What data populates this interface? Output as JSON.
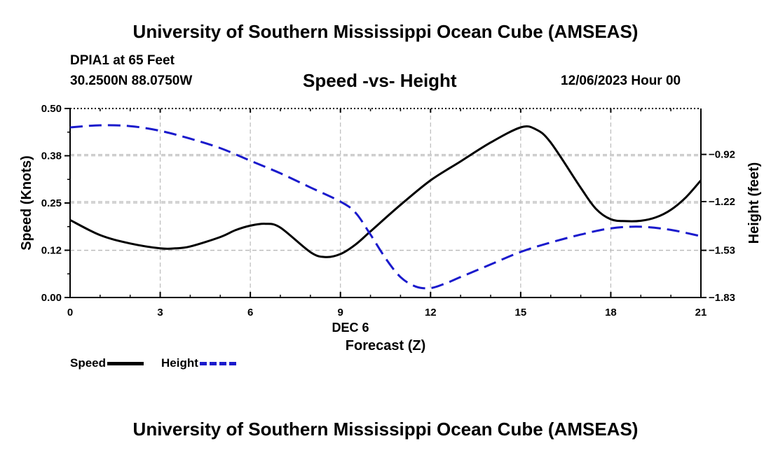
{
  "header": {
    "title": "University of Southern Mississippi Ocean Cube (AMSEAS)",
    "station": "DPIA1 at 65 Feet",
    "coords": "30.2500N  88.0750W",
    "subtitle": "Speed -vs- Height",
    "datetime": "12/06/2023 Hour 00"
  },
  "footer": {
    "title": "University of Southern Mississippi Ocean Cube (AMSEAS)"
  },
  "legend": {
    "speed_label": "Speed",
    "height_label": "Height"
  },
  "colors": {
    "speed": "#000000",
    "height": "#1a1acc",
    "grid": "#bbbbbb"
  },
  "chart_data": {
    "type": "line",
    "title": "Speed -vs- Height",
    "xlabel": "Forecast (Z)",
    "xlabel_date": "DEC 6",
    "ylabel": "Speed (Knots)",
    "y2label": "Height (feet)",
    "xlim": [
      0,
      21
    ],
    "ylim": [
      0,
      0.5
    ],
    "y2lim": [
      -1.83,
      -0.628
    ],
    "x_ticks": [
      0,
      3,
      6,
      9,
      12,
      15,
      18,
      21
    ],
    "x_tick_labels": [
      "0",
      "3",
      "6",
      "9",
      "12",
      "15",
      "18",
      "21"
    ],
    "y_ticks": [
      0,
      0.125,
      0.25,
      0.375,
      0.5
    ],
    "y_tick_labels": [
      "0.00",
      "0.12",
      "0.25",
      "0.38",
      "0.50"
    ],
    "y2_ticks": [
      -1.83,
      -1.53,
      -1.22,
      -0.92
    ],
    "y2_tick_labels": [
      "−1.83",
      "−1.53",
      "−1.22",
      "−0.92"
    ],
    "grid": true,
    "series": [
      {
        "name": "Speed",
        "axis": "left",
        "style": "solid",
        "x": [
          0,
          1,
          2,
          3,
          3.5,
          4,
          5,
          5.5,
          6,
          6.5,
          7,
          8,
          8.5,
          9,
          9.5,
          10,
          11,
          12,
          13,
          14,
          15,
          15.5,
          16,
          17,
          17.5,
          18,
          18.5,
          19,
          19.5,
          20,
          20.5,
          21
        ],
        "y": [
          0.205,
          0.165,
          0.143,
          0.13,
          0.13,
          0.135,
          0.16,
          0.178,
          0.19,
          0.195,
          0.185,
          0.12,
          0.107,
          0.115,
          0.14,
          0.175,
          0.245,
          0.31,
          0.36,
          0.41,
          0.45,
          0.445,
          0.41,
          0.29,
          0.235,
          0.207,
          0.202,
          0.203,
          0.212,
          0.232,
          0.265,
          0.31
        ]
      },
      {
        "name": "Height",
        "axis": "right",
        "style": "dashed",
        "x": [
          0,
          1,
          2,
          3,
          4,
          5,
          6,
          7,
          8,
          9,
          9.5,
          10,
          10.5,
          11,
          11.5,
          12,
          12.5,
          13,
          14,
          15,
          16,
          17,
          18,
          19,
          20,
          21
        ],
        "y": [
          -0.748,
          -0.735,
          -0.74,
          -0.77,
          -0.82,
          -0.88,
          -0.96,
          -1.04,
          -1.13,
          -1.22,
          -1.29,
          -1.43,
          -1.58,
          -1.7,
          -1.76,
          -1.77,
          -1.74,
          -1.7,
          -1.62,
          -1.54,
          -1.48,
          -1.43,
          -1.39,
          -1.38,
          -1.4,
          -1.44
        ]
      }
    ]
  }
}
